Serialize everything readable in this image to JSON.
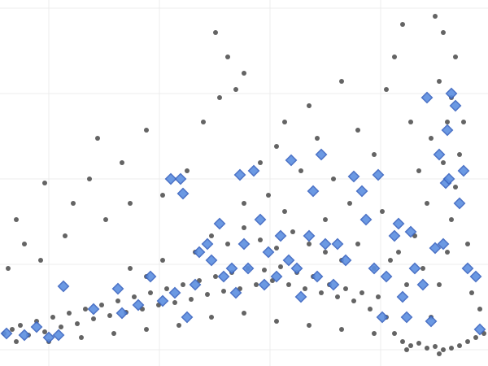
{
  "chart_data": {
    "type": "scatter",
    "xlim": [
      0,
      600
    ],
    "ylim": [
      0,
      450
    ],
    "xticks": [
      60,
      196,
      332,
      468
    ],
    "yticks": [
      20,
      125,
      230,
      335,
      440
    ],
    "grid": true,
    "series": [
      {
        "color": "#222222",
        "marker": "circle",
        "x": [
          5,
          15,
          25,
          35,
          45,
          55,
          65,
          75,
          85,
          95,
          105,
          115,
          125,
          135,
          145,
          155,
          165,
          175,
          185,
          195,
          205,
          215,
          225,
          235,
          245,
          255,
          265,
          275,
          285,
          295,
          305,
          315,
          325,
          335,
          345,
          355,
          365,
          375,
          385,
          395,
          405,
          415,
          425,
          435,
          445,
          455,
          465,
          475,
          485,
          495,
          505,
          515,
          525,
          535,
          545,
          555,
          565,
          575,
          585,
          595,
          20,
          60,
          100,
          140,
          180,
          220,
          260,
          300,
          340,
          380,
          420,
          460,
          500,
          540,
          530,
          540,
          550,
          555,
          560,
          545,
          565,
          550,
          555,
          540,
          560,
          545,
          535,
          525,
          575,
          520,
          580,
          590,
          510,
          570,
          500,
          490,
          515,
          530,
          240,
          260,
          280,
          300,
          320,
          340,
          360,
          380,
          400,
          420,
          440,
          460,
          480,
          300,
          330,
          350,
          400,
          430,
          470,
          200,
          180,
          160,
          10,
          30,
          50,
          55,
          80,
          110,
          130,
          150,
          180,
          200,
          230,
          250,
          265,
          280,
          290,
          300,
          320,
          340,
          370,
          390,
          410,
          440,
          460,
          475,
          485,
          495,
          505,
          420,
          380,
          160,
          90,
          20,
          120,
          270,
          350
        ],
        "values": [
          40,
          45,
          50,
          38,
          55,
          42,
          60,
          48,
          65,
          52,
          70,
          58,
          75,
          62,
          80,
          66,
          85,
          70,
          90,
          75,
          95,
          78,
          100,
          82,
          105,
          88,
          110,
          92,
          115,
          95,
          120,
          100,
          118,
          105,
          122,
          100,
          115,
          95,
          110,
          90,
          100,
          85,
          95,
          80,
          90,
          70,
          85,
          60,
          40,
          30,
          25,
          28,
          22,
          24,
          20,
          22,
          25,
          30,
          35,
          40,
          30,
          30,
          35,
          40,
          45,
          50,
          60,
          65,
          55,
          50,
          45,
          40,
          20,
          15,
          60,
          100,
          140,
          180,
          220,
          250,
          260,
          300,
          330,
          350,
          380,
          410,
          430,
          200,
          150,
          120,
          90,
          70,
          160,
          300,
          100,
          140,
          240,
          280,
          140,
          160,
          150,
          170,
          155,
          145,
          165,
          150,
          140,
          130,
          150,
          120,
          130,
          200,
          210,
          190,
          180,
          200,
          190,
          130,
          110,
          120,
          120,
          150,
          130,
          225,
          160,
          230,
          180,
          250,
          290,
          210,
          240,
          300,
          410,
          380,
          340,
          360,
          250,
          270,
          240,
          280,
          230,
          290,
          260,
          340,
          380,
          420,
          300,
          350,
          320,
          200,
          200,
          180,
          280,
          330,
          300
        ]
      },
      {
        "color": "#5b8ee0",
        "marker": "diamond",
        "x": [
          8,
          30,
          45,
          60,
          72,
          78,
          115,
          145,
          150,
          170,
          185,
          200,
          210,
          222,
          225,
          215,
          230,
          240,
          245,
          255,
          260,
          270,
          275,
          285,
          290,
          295,
          300,
          305,
          312,
          320,
          325,
          330,
          340,
          345,
          355,
          358,
          365,
          370,
          380,
          385,
          390,
          395,
          400,
          410,
          415,
          425,
          435,
          445,
          450,
          460,
          465,
          470,
          475,
          485,
          490,
          495,
          500,
          505,
          510,
          520,
          525,
          535,
          545,
          548,
          552,
          555,
          560,
          565,
          570,
          575,
          585,
          590,
          530,
          550,
          540
        ],
        "values": [
          40,
          38,
          48,
          35,
          38,
          98,
          70,
          95,
          65,
          75,
          110,
          80,
          230,
          230,
          212,
          90,
          60,
          100,
          140,
          150,
          130,
          175,
          110,
          120,
          90,
          235,
          150,
          120,
          240,
          180,
          100,
          140,
          110,
          160,
          130,
          253,
          120,
          85,
          160,
          215,
          110,
          260,
          150,
          100,
          150,
          130,
          233,
          215,
          180,
          120,
          235,
          60,
          110,
          160,
          175,
          85,
          60,
          165,
          120,
          100,
          330,
          145,
          150,
          225,
          230,
          335,
          320,
          200,
          240,
          120,
          110,
          45,
          55,
          290,
          260
        ]
      }
    ]
  }
}
